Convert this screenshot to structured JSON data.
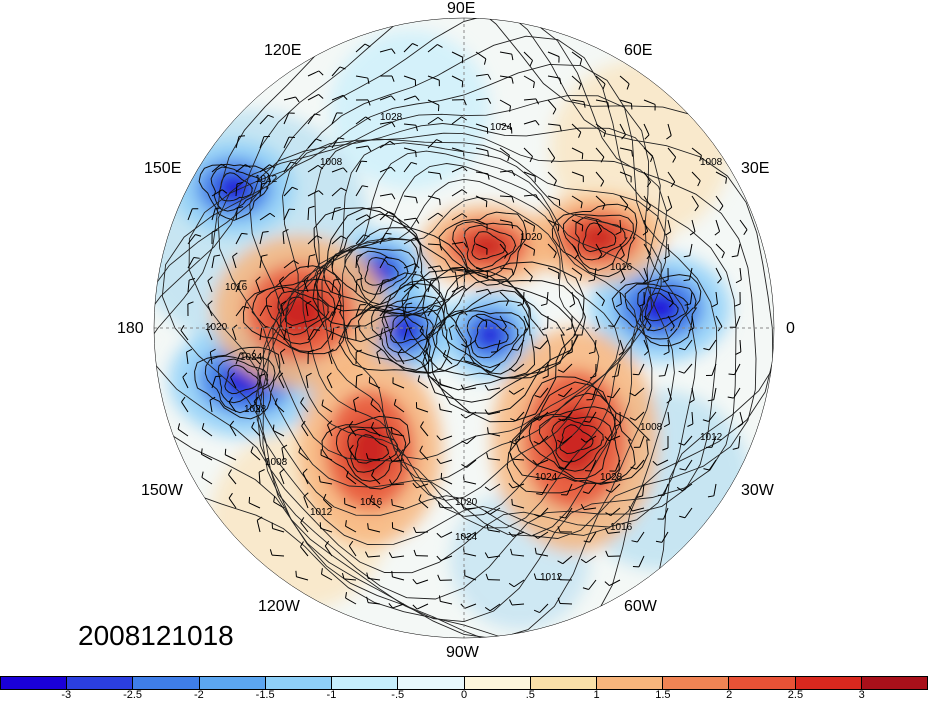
{
  "timestamp": "2008121018",
  "longitude_labels": {
    "top": "90E",
    "top_right": "60E",
    "right_upper": "30E",
    "right": "0",
    "right_lower": "30W",
    "bottom_right": "60W",
    "bottom": "90W",
    "bottom_left": "120W",
    "left_lower": "150W",
    "left": "180",
    "left_upper": "150E",
    "top_left": "120E"
  },
  "contour_labels": [
    "1008",
    "1012",
    "1016",
    "1020",
    "1024",
    "1028"
  ],
  "colorbar": {
    "colors": [
      "#1a00d8",
      "#2b3fe0",
      "#3f7ee8",
      "#5ca6f0",
      "#8fd0f8",
      "#c6eefc",
      "#e8f8fc",
      "#fdf6dc",
      "#fae0a8",
      "#f7b57c",
      "#f08454",
      "#e85236",
      "#d8281e",
      "#a8101a"
    ],
    "tick_labels": [
      "-3",
      "-2.5",
      "-2",
      "-1.5",
      "-1",
      "-.5",
      "0",
      ".5",
      "1",
      "1.5",
      "2",
      "2.5",
      "3"
    ]
  },
  "anomaly_features": [
    {
      "sign": "negative",
      "name": "blob-150E"
    },
    {
      "sign": "negative",
      "name": "blob-170W"
    },
    {
      "sign": "negative",
      "name": "blob-arctic-1"
    },
    {
      "sign": "negative",
      "name": "blob-arctic-2"
    },
    {
      "sign": "negative",
      "name": "blob-arctic-3"
    },
    {
      "sign": "negative",
      "name": "blob-0E"
    },
    {
      "sign": "positive",
      "name": "blob-pacific"
    },
    {
      "sign": "positive",
      "name": "blob-atlantic"
    },
    {
      "sign": "positive",
      "name": "blob-siberia"
    },
    {
      "sign": "positive",
      "name": "blob-europe"
    },
    {
      "sign": "positive",
      "name": "blob-alaska"
    }
  ]
}
